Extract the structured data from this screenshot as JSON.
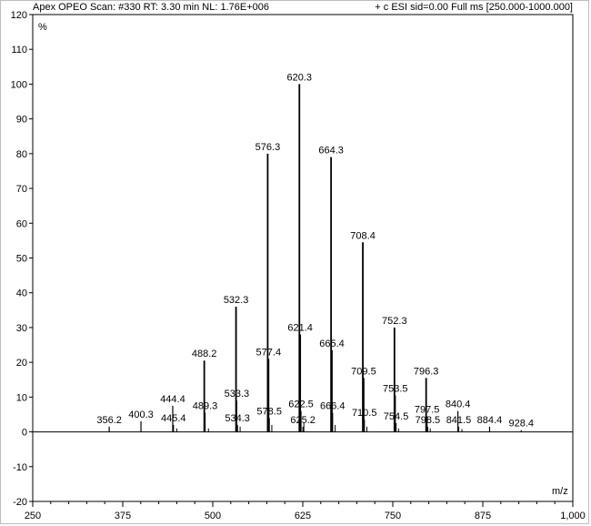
{
  "header": {
    "left": "Apex OPEO Scan: #330  RT: 3.30 min NL: 1.76E+006",
    "right": "+ c ESI sid=0.00  Full ms [250.000-1000.000]"
  },
  "chart_data": {
    "type": "bar",
    "ylabel": "%",
    "xlabel": "m/z",
    "xlim": [
      250,
      1000
    ],
    "ylim": [
      -20,
      120
    ],
    "x_ticks": [
      250,
      375,
      500,
      625,
      750,
      875,
      1000
    ],
    "x_tick_labels": [
      "250",
      "375",
      "500",
      "625",
      "750",
      "875",
      "1,000"
    ],
    "y_ticks": [
      -20,
      -10,
      0,
      10,
      20,
      30,
      40,
      50,
      60,
      70,
      80,
      90,
      100,
      110,
      120
    ],
    "x_minor_step": 25,
    "peaks": [
      {
        "mz": 356.2,
        "intensity": 1.5,
        "label": "356.2"
      },
      {
        "mz": 400.3,
        "intensity": 3,
        "label": "400.3"
      },
      {
        "mz": 444.4,
        "intensity": 7.5,
        "label": "444.4"
      },
      {
        "mz": 445.4,
        "intensity": 2,
        "label": "445.4"
      },
      {
        "mz": 488.2,
        "intensity": 20.5,
        "label": "488.2"
      },
      {
        "mz": 489.3,
        "intensity": 5.5,
        "label": "489.3"
      },
      {
        "mz": 532.3,
        "intensity": 36,
        "label": "532.3"
      },
      {
        "mz": 533.3,
        "intensity": 9,
        "label": "533.3"
      },
      {
        "mz": 534.3,
        "intensity": 2,
        "label": "534.3"
      },
      {
        "mz": 576.3,
        "intensity": 80,
        "label": "576.3"
      },
      {
        "mz": 577.4,
        "intensity": 21,
        "label": "577.4"
      },
      {
        "mz": 578.5,
        "intensity": 4,
        "label": "578.5"
      },
      {
        "mz": 620.3,
        "intensity": 100,
        "label": "620.3"
      },
      {
        "mz": 621.4,
        "intensity": 28,
        "label": "621.4"
      },
      {
        "mz": 622.5,
        "intensity": 6,
        "label": "622.5"
      },
      {
        "mz": 625.2,
        "intensity": 1.5,
        "label": "625.2"
      },
      {
        "mz": 664.3,
        "intensity": 79,
        "label": "664.3"
      },
      {
        "mz": 665.4,
        "intensity": 23.5,
        "label": "665.4"
      },
      {
        "mz": 666.4,
        "intensity": 5.5,
        "label": "666.4"
      },
      {
        "mz": 708.4,
        "intensity": 54.5,
        "label": "708.4"
      },
      {
        "mz": 709.5,
        "intensity": 15.5,
        "label": "709.5"
      },
      {
        "mz": 710.5,
        "intensity": 3.5,
        "label": "710.5"
      },
      {
        "mz": 752.3,
        "intensity": 30,
        "label": "752.3"
      },
      {
        "mz": 753.5,
        "intensity": 10.5,
        "label": "753.5"
      },
      {
        "mz": 754.5,
        "intensity": 2.5,
        "label": "754.5"
      },
      {
        "mz": 796.3,
        "intensity": 15.5,
        "label": "796.3"
      },
      {
        "mz": 797.5,
        "intensity": 4.5,
        "label": "797.5"
      },
      {
        "mz": 798.5,
        "intensity": 1.5,
        "label": "798.5"
      },
      {
        "mz": 840.4,
        "intensity": 6,
        "label": "840.4"
      },
      {
        "mz": 841.5,
        "intensity": 1.5,
        "label": "841.5"
      },
      {
        "mz": 884.4,
        "intensity": 1.5,
        "label": "884.4"
      },
      {
        "mz": 928.4,
        "intensity": 0.5,
        "label": "928.4"
      }
    ],
    "minor_peaks": [
      {
        "mz": 450.0,
        "intensity": 1
      },
      {
        "mz": 494.0,
        "intensity": 1
      },
      {
        "mz": 538.0,
        "intensity": 1.5
      },
      {
        "mz": 582.0,
        "intensity": 2
      },
      {
        "mz": 626.5,
        "intensity": 2.5
      },
      {
        "mz": 670.0,
        "intensity": 2
      },
      {
        "mz": 714.0,
        "intensity": 1.5
      },
      {
        "mz": 758.0,
        "intensity": 1
      },
      {
        "mz": 802.0,
        "intensity": 1
      },
      {
        "mz": 846.0,
        "intensity": 0.8
      }
    ]
  }
}
